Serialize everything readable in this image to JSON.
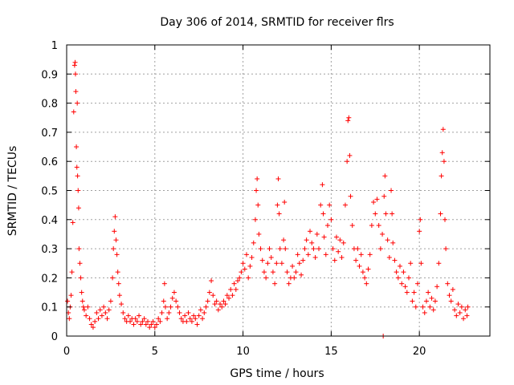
{
  "chart_data": {
    "type": "scatter",
    "title": "Day 306 of 2014, SRMTID for receiver flrs",
    "xlabel": "GPS time / hours",
    "ylabel": "SRMTID / TECUs",
    "xlim": [
      0,
      24
    ],
    "ylim": [
      0,
      1
    ],
    "xticks": [
      0,
      5,
      10,
      15,
      20
    ],
    "xtick_labels": [
      "0",
      "5",
      "10",
      "15",
      "20"
    ],
    "yticks": [
      0,
      0.1,
      0.2,
      0.3,
      0.4,
      0.5,
      0.6,
      0.7,
      0.8,
      0.9,
      1
    ],
    "ytick_labels": [
      "0",
      "0.1",
      "0.2",
      "0.3",
      "0.4",
      "0.5",
      "0.6",
      "0.7",
      "0.8",
      "0.9",
      "1"
    ],
    "grid": true,
    "marker": "+",
    "color": "#ff0000",
    "series": [
      {
        "name": "SRMTID",
        "points": [
          [
            0.05,
            0.12
          ],
          [
            0.1,
            0.08
          ],
          [
            0.15,
            0.06
          ],
          [
            0.2,
            0.1
          ],
          [
            0.25,
            0.14
          ],
          [
            0.3,
            0.22
          ],
          [
            0.35,
            0.39
          ],
          [
            0.4,
            0.77
          ],
          [
            0.45,
            0.93
          ],
          [
            0.48,
            0.94
          ],
          [
            0.5,
            0.9
          ],
          [
            0.52,
            0.84
          ],
          [
            0.55,
            0.65
          ],
          [
            0.58,
            0.58
          ],
          [
            0.6,
            0.8
          ],
          [
            0.62,
            0.55
          ],
          [
            0.65,
            0.5
          ],
          [
            0.68,
            0.44
          ],
          [
            0.7,
            0.3
          ],
          [
            0.75,
            0.25
          ],
          [
            0.8,
            0.2
          ],
          [
            0.85,
            0.15
          ],
          [
            0.9,
            0.12
          ],
          [
            0.95,
            0.1
          ],
          [
            1.0,
            0.09
          ],
          [
            1.1,
            0.07
          ],
          [
            1.2,
            0.1
          ],
          [
            1.3,
            0.06
          ],
          [
            1.4,
            0.04
          ],
          [
            1.5,
            0.03
          ],
          [
            1.6,
            0.05
          ],
          [
            1.7,
            0.08
          ],
          [
            1.8,
            0.06
          ],
          [
            1.9,
            0.09
          ],
          [
            2.0,
            0.07
          ],
          [
            2.1,
            0.1
          ],
          [
            2.2,
            0.08
          ],
          [
            2.3,
            0.06
          ],
          [
            2.4,
            0.09
          ],
          [
            2.5,
            0.12
          ],
          [
            2.6,
            0.2
          ],
          [
            2.65,
            0.3
          ],
          [
            2.7,
            0.36
          ],
          [
            2.75,
            0.41
          ],
          [
            2.8,
            0.33
          ],
          [
            2.85,
            0.28
          ],
          [
            2.9,
            0.22
          ],
          [
            2.95,
            0.18
          ],
          [
            3.0,
            0.14
          ],
          [
            3.1,
            0.11
          ],
          [
            3.2,
            0.08
          ],
          [
            3.3,
            0.06
          ],
          [
            3.4,
            0.05
          ],
          [
            3.5,
            0.07
          ],
          [
            3.6,
            0.05
          ],
          [
            3.7,
            0.06
          ],
          [
            3.8,
            0.04
          ],
          [
            3.9,
            0.06
          ],
          [
            4.0,
            0.05
          ],
          [
            4.1,
            0.07
          ],
          [
            4.2,
            0.04
          ],
          [
            4.3,
            0.05
          ],
          [
            4.4,
            0.06
          ],
          [
            4.5,
            0.04
          ],
          [
            4.6,
            0.05
          ],
          [
            4.7,
            0.03
          ],
          [
            4.8,
            0.04
          ],
          [
            4.9,
            0.05
          ],
          [
            5.0,
            0.03
          ],
          [
            5.1,
            0.04
          ],
          [
            5.2,
            0.06
          ],
          [
            5.3,
            0.05
          ],
          [
            5.4,
            0.08
          ],
          [
            5.5,
            0.12
          ],
          [
            5.55,
            0.18
          ],
          [
            5.6,
            0.1
          ],
          [
            5.7,
            0.06
          ],
          [
            5.8,
            0.08
          ],
          [
            5.9,
            0.1
          ],
          [
            6.0,
            0.13
          ],
          [
            6.1,
            0.15
          ],
          [
            6.2,
            0.12
          ],
          [
            6.3,
            0.1
          ],
          [
            6.4,
            0.08
          ],
          [
            6.5,
            0.06
          ],
          [
            6.6,
            0.05
          ],
          [
            6.7,
            0.07
          ],
          [
            6.8,
            0.05
          ],
          [
            6.9,
            0.08
          ],
          [
            7.0,
            0.06
          ],
          [
            7.1,
            0.05
          ],
          [
            7.2,
            0.07
          ],
          [
            7.3,
            0.06
          ],
          [
            7.4,
            0.04
          ],
          [
            7.5,
            0.07
          ],
          [
            7.6,
            0.09
          ],
          [
            7.7,
            0.06
          ],
          [
            7.8,
            0.08
          ],
          [
            7.9,
            0.1
          ],
          [
            8.0,
            0.12
          ],
          [
            8.1,
            0.15
          ],
          [
            8.2,
            0.19
          ],
          [
            8.3,
            0.14
          ],
          [
            8.4,
            0.11
          ],
          [
            8.5,
            0.12
          ],
          [
            8.6,
            0.09
          ],
          [
            8.7,
            0.11
          ],
          [
            8.8,
            0.1
          ],
          [
            8.9,
            0.12
          ],
          [
            9.0,
            0.11
          ],
          [
            9.1,
            0.14
          ],
          [
            9.2,
            0.13
          ],
          [
            9.3,
            0.16
          ],
          [
            9.4,
            0.14
          ],
          [
            9.5,
            0.18
          ],
          [
            9.6,
            0.16
          ],
          [
            9.7,
            0.19
          ],
          [
            9.8,
            0.2
          ],
          [
            9.9,
            0.22
          ],
          [
            10.0,
            0.25
          ],
          [
            10.1,
            0.23
          ],
          [
            10.2,
            0.28
          ],
          [
            10.3,
            0.2
          ],
          [
            10.4,
            0.24
          ],
          [
            10.5,
            0.27
          ],
          [
            10.6,
            0.32
          ],
          [
            10.7,
            0.4
          ],
          [
            10.75,
            0.5
          ],
          [
            10.8,
            0.54
          ],
          [
            10.85,
            0.45
          ],
          [
            10.9,
            0.35
          ],
          [
            11.0,
            0.3
          ],
          [
            11.1,
            0.26
          ],
          [
            11.2,
            0.22
          ],
          [
            11.3,
            0.2
          ],
          [
            11.4,
            0.25
          ],
          [
            11.5,
            0.3
          ],
          [
            11.6,
            0.27
          ],
          [
            11.7,
            0.22
          ],
          [
            11.8,
            0.18
          ],
          [
            11.9,
            0.25
          ],
          [
            11.95,
            0.45
          ],
          [
            12.0,
            0.54
          ],
          [
            12.05,
            0.42
          ],
          [
            12.1,
            0.3
          ],
          [
            12.2,
            0.25
          ],
          [
            12.3,
            0.33
          ],
          [
            12.35,
            0.46
          ],
          [
            12.4,
            0.3
          ],
          [
            12.5,
            0.22
          ],
          [
            12.6,
            0.18
          ],
          [
            12.7,
            0.2
          ],
          [
            12.8,
            0.24
          ],
          [
            12.9,
            0.2
          ],
          [
            13.0,
            0.22
          ],
          [
            13.1,
            0.28
          ],
          [
            13.2,
            0.25
          ],
          [
            13.3,
            0.21
          ],
          [
            13.4,
            0.26
          ],
          [
            13.5,
            0.3
          ],
          [
            13.6,
            0.33
          ],
          [
            13.7,
            0.28
          ],
          [
            13.8,
            0.36
          ],
          [
            13.9,
            0.32
          ],
          [
            14.0,
            0.3
          ],
          [
            14.1,
            0.27
          ],
          [
            14.2,
            0.35
          ],
          [
            14.3,
            0.3
          ],
          [
            14.4,
            0.45
          ],
          [
            14.5,
            0.52
          ],
          [
            14.55,
            0.42
          ],
          [
            14.6,
            0.34
          ],
          [
            14.7,
            0.28
          ],
          [
            14.8,
            0.38
          ],
          [
            14.9,
            0.45
          ],
          [
            15.0,
            0.4
          ],
          [
            15.1,
            0.3
          ],
          [
            15.2,
            0.26
          ],
          [
            15.3,
            0.34
          ],
          [
            15.4,
            0.29
          ],
          [
            15.5,
            0.33
          ],
          [
            15.6,
            0.27
          ],
          [
            15.7,
            0.32
          ],
          [
            15.8,
            0.45
          ],
          [
            15.9,
            0.6
          ],
          [
            15.95,
            0.74
          ],
          [
            16.0,
            0.75
          ],
          [
            16.05,
            0.62
          ],
          [
            16.1,
            0.48
          ],
          [
            16.2,
            0.38
          ],
          [
            16.3,
            0.3
          ],
          [
            16.4,
            0.26
          ],
          [
            16.5,
            0.3
          ],
          [
            16.6,
            0.24
          ],
          [
            16.7,
            0.28
          ],
          [
            16.8,
            0.22
          ],
          [
            16.9,
            0.2
          ],
          [
            17.0,
            0.18
          ],
          [
            17.1,
            0.23
          ],
          [
            17.2,
            0.28
          ],
          [
            17.3,
            0.38
          ],
          [
            17.4,
            0.46
          ],
          [
            17.5,
            0.42
          ],
          [
            17.6,
            0.47
          ],
          [
            17.7,
            0.38
          ],
          [
            17.8,
            0.3
          ],
          [
            17.9,
            0.35
          ],
          [
            17.95,
            0.0
          ],
          [
            18.0,
            0.48
          ],
          [
            18.05,
            0.55
          ],
          [
            18.1,
            0.42
          ],
          [
            18.2,
            0.33
          ],
          [
            18.3,
            0.27
          ],
          [
            18.4,
            0.5
          ],
          [
            18.45,
            0.42
          ],
          [
            18.5,
            0.32
          ],
          [
            18.6,
            0.26
          ],
          [
            18.7,
            0.22
          ],
          [
            18.8,
            0.2
          ],
          [
            18.9,
            0.24
          ],
          [
            19.0,
            0.18
          ],
          [
            19.1,
            0.22
          ],
          [
            19.2,
            0.17
          ],
          [
            19.3,
            0.15
          ],
          [
            19.4,
            0.2
          ],
          [
            19.5,
            0.25
          ],
          [
            19.6,
            0.12
          ],
          [
            19.7,
            0.15
          ],
          [
            19.8,
            0.1
          ],
          [
            19.9,
            0.18
          ],
          [
            20.0,
            0.36
          ],
          [
            20.05,
            0.4
          ],
          [
            20.1,
            0.25
          ],
          [
            20.2,
            0.1
          ],
          [
            20.3,
            0.08
          ],
          [
            20.4,
            0.12
          ],
          [
            20.5,
            0.15
          ],
          [
            20.6,
            0.1
          ],
          [
            20.7,
            0.13
          ],
          [
            20.8,
            0.09
          ],
          [
            20.9,
            0.12
          ],
          [
            21.0,
            0.17
          ],
          [
            21.1,
            0.25
          ],
          [
            21.2,
            0.42
          ],
          [
            21.25,
            0.55
          ],
          [
            21.3,
            0.63
          ],
          [
            21.35,
            0.71
          ],
          [
            21.4,
            0.6
          ],
          [
            21.45,
            0.4
          ],
          [
            21.5,
            0.3
          ],
          [
            21.6,
            0.18
          ],
          [
            21.7,
            0.14
          ],
          [
            21.8,
            0.12
          ],
          [
            21.9,
            0.16
          ],
          [
            22.0,
            0.09
          ],
          [
            22.1,
            0.07
          ],
          [
            22.2,
            0.11
          ],
          [
            22.3,
            0.08
          ],
          [
            22.4,
            0.1
          ],
          [
            22.5,
            0.06
          ],
          [
            22.6,
            0.09
          ],
          [
            22.7,
            0.07
          ],
          [
            22.75,
            0.1
          ]
        ]
      }
    ]
  }
}
